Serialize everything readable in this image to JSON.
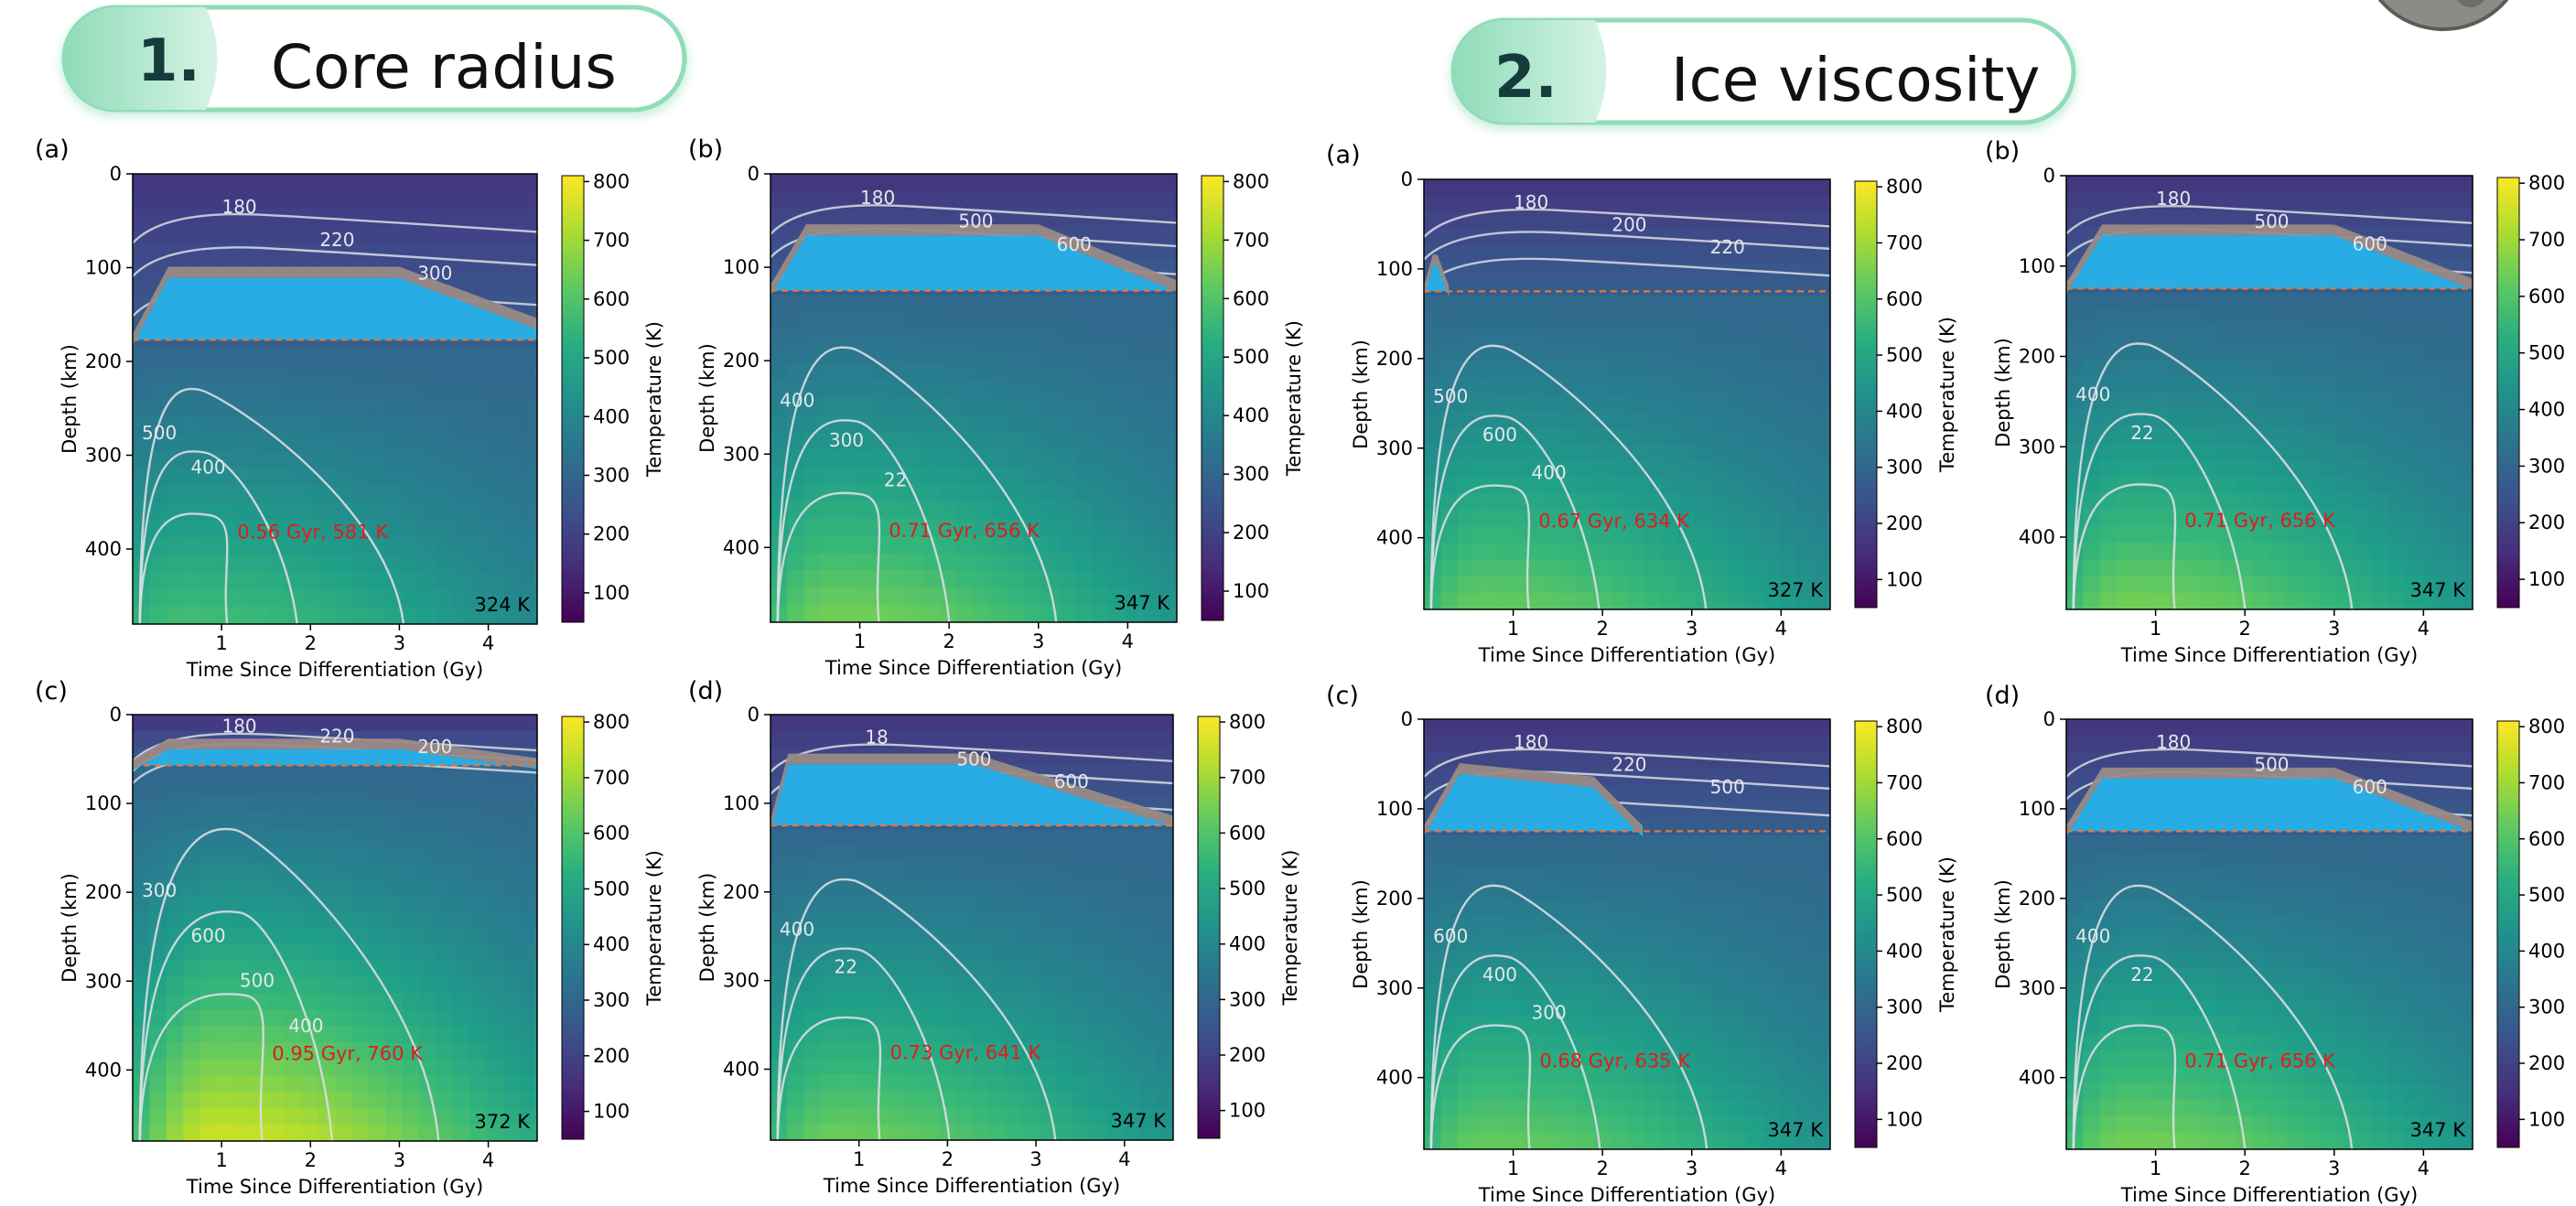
{
  "sections": [
    {
      "number": "1.",
      "title": "Core radius"
    },
    {
      "number": "2.",
      "title": "Ice viscosity"
    }
  ],
  "colorbar": {
    "label": "Temperature (K)",
    "ticks": [
      100,
      200,
      300,
      400,
      500,
      600,
      700,
      800
    ],
    "range": [
      50,
      810
    ],
    "colormap": "viridis"
  },
  "colors": {
    "ocean": "#29ace3",
    "crust": "#9a8a86",
    "interface_line": "#e07a3a",
    "contour": "#d9dde3",
    "peak_annotation": "#e21c1c",
    "section_pill": "#8fdcb9"
  },
  "chart_data": [
    {
      "type": "heatmap",
      "section": 1,
      "panel": "(a)",
      "title": "",
      "xlabel": "Time Since Differentiation (Gy)",
      "ylabel": "Depth (km)",
      "xlim": [
        0,
        4.55
      ],
      "ylim": [
        480,
        0
      ],
      "xticks": [
        1,
        2,
        3,
        4
      ],
      "yticks": [
        0,
        100,
        200,
        300,
        400
      ],
      "interface_depth_km": 177,
      "peak_label": "0.56 Gyr, 581 K",
      "final_temp_label": "324 K",
      "contour_labels": [
        "180",
        "220",
        "300",
        "500",
        "400"
      ],
      "ocean": {
        "time": [
          0.0,
          0.4,
          3.0,
          4.55
        ],
        "top_km": [
          177,
          105,
          105,
          160
        ],
        "bottom_km": [
          177,
          177,
          177,
          177
        ]
      },
      "peak": {
        "time": 0.56,
        "depth_km": 470,
        "temp_k": 581
      }
    },
    {
      "type": "heatmap",
      "section": 1,
      "panel": "(b)",
      "title": "",
      "xlabel": "Time Since Differentiation (Gy)",
      "ylabel": "Depth (km)",
      "xlim": [
        0,
        4.55
      ],
      "ylim": [
        480,
        0
      ],
      "xticks": [
        1,
        2,
        3,
        4
      ],
      "yticks": [
        0,
        100,
        200,
        300,
        400
      ],
      "interface_depth_km": 125,
      "peak_label": "0.71 Gyr, 656 K",
      "final_temp_label": "347 K",
      "contour_labels": [
        "180",
        "500",
        "600",
        "400",
        "300",
        "22"
      ],
      "ocean": {
        "time": [
          0.0,
          0.4,
          3.0,
          4.55
        ],
        "top_km": [
          125,
          60,
          60,
          120
        ],
        "bottom_km": [
          125,
          125,
          125,
          125
        ]
      },
      "peak": {
        "time": 0.71,
        "depth_km": 470,
        "temp_k": 656
      }
    },
    {
      "type": "heatmap",
      "section": 1,
      "panel": "(c)",
      "title": "",
      "xlabel": "Time Since Differentiation (Gy)",
      "ylabel": "Depth (km)",
      "xlim": [
        0,
        4.55
      ],
      "ylim": [
        480,
        0
      ],
      "xticks": [
        1,
        2,
        3,
        4
      ],
      "yticks": [
        0,
        100,
        200,
        300,
        400
      ],
      "interface_depth_km": 57,
      "peak_label": "0.95 Gyr, 760 K",
      "final_temp_label": "372 K",
      "contour_labels": [
        "180",
        "220",
        "200",
        "300",
        "600",
        "500",
        "400"
      ],
      "ocean": {
        "time": [
          0.0,
          0.4,
          3.0,
          4.55
        ],
        "top_km": [
          57,
          33,
          33,
          55
        ],
        "bottom_km": [
          57,
          57,
          57,
          57
        ]
      },
      "peak": {
        "time": 0.95,
        "depth_km": 470,
        "temp_k": 760
      }
    },
    {
      "type": "heatmap",
      "section": 1,
      "panel": "(d)",
      "title": "",
      "xlabel": "Time Since Differentiation (Gy)",
      "ylabel": "Depth (km)",
      "xlim": [
        0,
        4.55
      ],
      "ylim": [
        480,
        0
      ],
      "xticks": [
        1,
        2,
        3,
        4
      ],
      "yticks": [
        0,
        100,
        200,
        300,
        400
      ],
      "interface_depth_km": 125,
      "peak_label": "0.73 Gyr, 641 K",
      "final_temp_label": "347 K",
      "contour_labels": [
        "18",
        "500",
        "600",
        "400",
        "22"
      ],
      "ocean": {
        "time": [
          0.0,
          0.2,
          2.3,
          4.55
        ],
        "top_km": [
          125,
          50,
          50,
          120
        ],
        "bottom_km": [
          125,
          125,
          125,
          125
        ]
      },
      "peak": {
        "time": 0.73,
        "depth_km": 470,
        "temp_k": 641
      }
    },
    {
      "type": "heatmap",
      "section": 2,
      "panel": "(a)",
      "title": "",
      "xlabel": "Time Since Differentiation (Gy)",
      "ylabel": "Depth (km)",
      "xlim": [
        0,
        4.55
      ],
      "ylim": [
        480,
        0
      ],
      "xticks": [
        1,
        2,
        3,
        4
      ],
      "yticks": [
        0,
        100,
        200,
        300,
        400
      ],
      "interface_depth_km": 125,
      "peak_label": "0.67 Gyr, 634 K",
      "final_temp_label": "327 K",
      "contour_labels": [
        "180",
        "200",
        "220",
        "500",
        "600",
        "400"
      ],
      "ocean": {
        "time": [
          0.0,
          0.1,
          0.15,
          0.28
        ],
        "top_km": [
          125,
          90,
          90,
          125
        ],
        "bottom_km": [
          125,
          125,
          125,
          125
        ]
      },
      "peak": {
        "time": 0.67,
        "depth_km": 470,
        "temp_k": 634
      }
    },
    {
      "type": "heatmap",
      "section": 2,
      "panel": "(b)",
      "title": "",
      "xlabel": "Time Since Differentiation (Gy)",
      "ylabel": "Depth (km)",
      "xlim": [
        0,
        4.55
      ],
      "ylim": [
        480,
        0
      ],
      "xticks": [
        1,
        2,
        3,
        4
      ],
      "yticks": [
        0,
        100,
        200,
        300,
        400
      ],
      "interface_depth_km": 125,
      "peak_label": "0.71 Gyr, 656 K",
      "final_temp_label": "347 K",
      "contour_labels": [
        "180",
        "500",
        "600",
        "400",
        "22"
      ],
      "ocean": {
        "time": [
          0.0,
          0.4,
          3.0,
          4.55
        ],
        "top_km": [
          125,
          60,
          60,
          120
        ],
        "bottom_km": [
          125,
          125,
          125,
          125
        ]
      },
      "peak": {
        "time": 0.71,
        "depth_km": 470,
        "temp_k": 656
      }
    },
    {
      "type": "heatmap",
      "section": 2,
      "panel": "(c)",
      "title": "",
      "xlabel": "Time Since Differentiation (Gy)",
      "ylabel": "Depth (km)",
      "xlim": [
        0,
        4.55
      ],
      "ylim": [
        480,
        0
      ],
      "xticks": [
        1,
        2,
        3,
        4
      ],
      "yticks": [
        0,
        100,
        200,
        300,
        400
      ],
      "interface_depth_km": 125,
      "peak_label": "0.68 Gyr, 635 K",
      "final_temp_label": "347 K",
      "contour_labels": [
        "180",
        "220",
        "500",
        "600",
        "400",
        "300"
      ],
      "ocean": {
        "time": [
          0.0,
          0.4,
          1.9,
          2.45
        ],
        "top_km": [
          125,
          55,
          70,
          125
        ],
        "bottom_km": [
          125,
          125,
          125,
          125
        ]
      },
      "peak": {
        "time": 0.68,
        "depth_km": 470,
        "temp_k": 635
      }
    },
    {
      "type": "heatmap",
      "section": 2,
      "panel": "(d)",
      "title": "",
      "xlabel": "Time Since Differentiation (Gy)",
      "ylabel": "Depth (km)",
      "xlim": [
        0,
        4.55
      ],
      "ylim": [
        480,
        0
      ],
      "xticks": [
        1,
        2,
        3,
        4
      ],
      "yticks": [
        0,
        100,
        200,
        300,
        400
      ],
      "interface_depth_km": 125,
      "peak_label": "0.71 Gyr, 656 K",
      "final_temp_label": "347 K",
      "contour_labels": [
        "180",
        "500",
        "600",
        "400",
        "22"
      ],
      "ocean": {
        "time": [
          0.0,
          0.4,
          3.0,
          4.55
        ],
        "top_km": [
          125,
          60,
          60,
          120
        ],
        "bottom_km": [
          125,
          125,
          125,
          125
        ]
      },
      "peak": {
        "time": 0.71,
        "depth_km": 470,
        "temp_k": 656
      }
    }
  ]
}
